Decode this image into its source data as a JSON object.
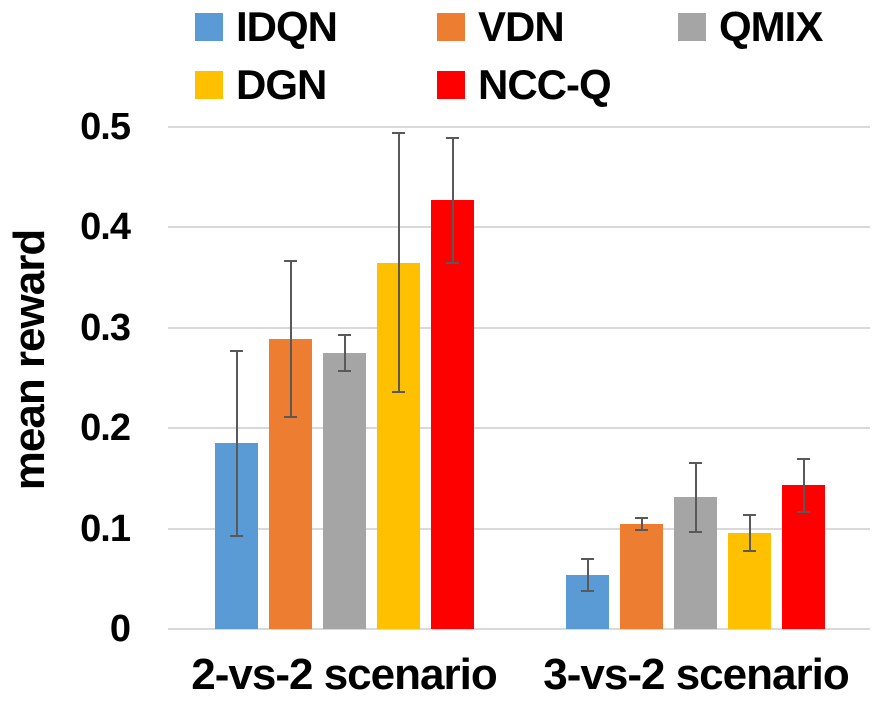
{
  "chart_data": {
    "type": "bar",
    "title": "",
    "xlabel": "",
    "ylabel": "mean reward",
    "categories": [
      "2-vs-2 scenario",
      "3-vs-2 scenario"
    ],
    "series": [
      {
        "name": "IDQN",
        "color": "#5B9BD5",
        "values": [
          0.185,
          0.054
        ],
        "errors": [
          0.092,
          0.016
        ]
      },
      {
        "name": "VDN",
        "color": "#ED7D31",
        "values": [
          0.289,
          0.105
        ],
        "errors": [
          0.078,
          0.006
        ]
      },
      {
        "name": "QMIX",
        "color": "#A5A5A5",
        "values": [
          0.275,
          0.131
        ],
        "errors": [
          0.018,
          0.034
        ]
      },
      {
        "name": "DGN",
        "color": "#FFC000",
        "values": [
          0.365,
          0.096
        ],
        "errors": [
          0.129,
          0.018
        ]
      },
      {
        "name": "NCC-Q",
        "color": "#FF0000",
        "values": [
          0.427,
          0.143
        ],
        "errors": [
          0.062,
          0.026
        ]
      }
    ],
    "ylim": [
      0,
      0.5
    ],
    "yticks": [
      0,
      0.1,
      0.2,
      0.3,
      0.4,
      0.5
    ],
    "ytick_labels": [
      "0",
      "0.1",
      "0.2",
      "0.3",
      "0.4",
      "0.5"
    ],
    "grid": true,
    "error_bars": true,
    "legend_position": "top"
  },
  "colors": {
    "background": "#FFFFFF",
    "gridline": "#D9D9D9",
    "error_bar": "#595959",
    "text": "#000000"
  }
}
